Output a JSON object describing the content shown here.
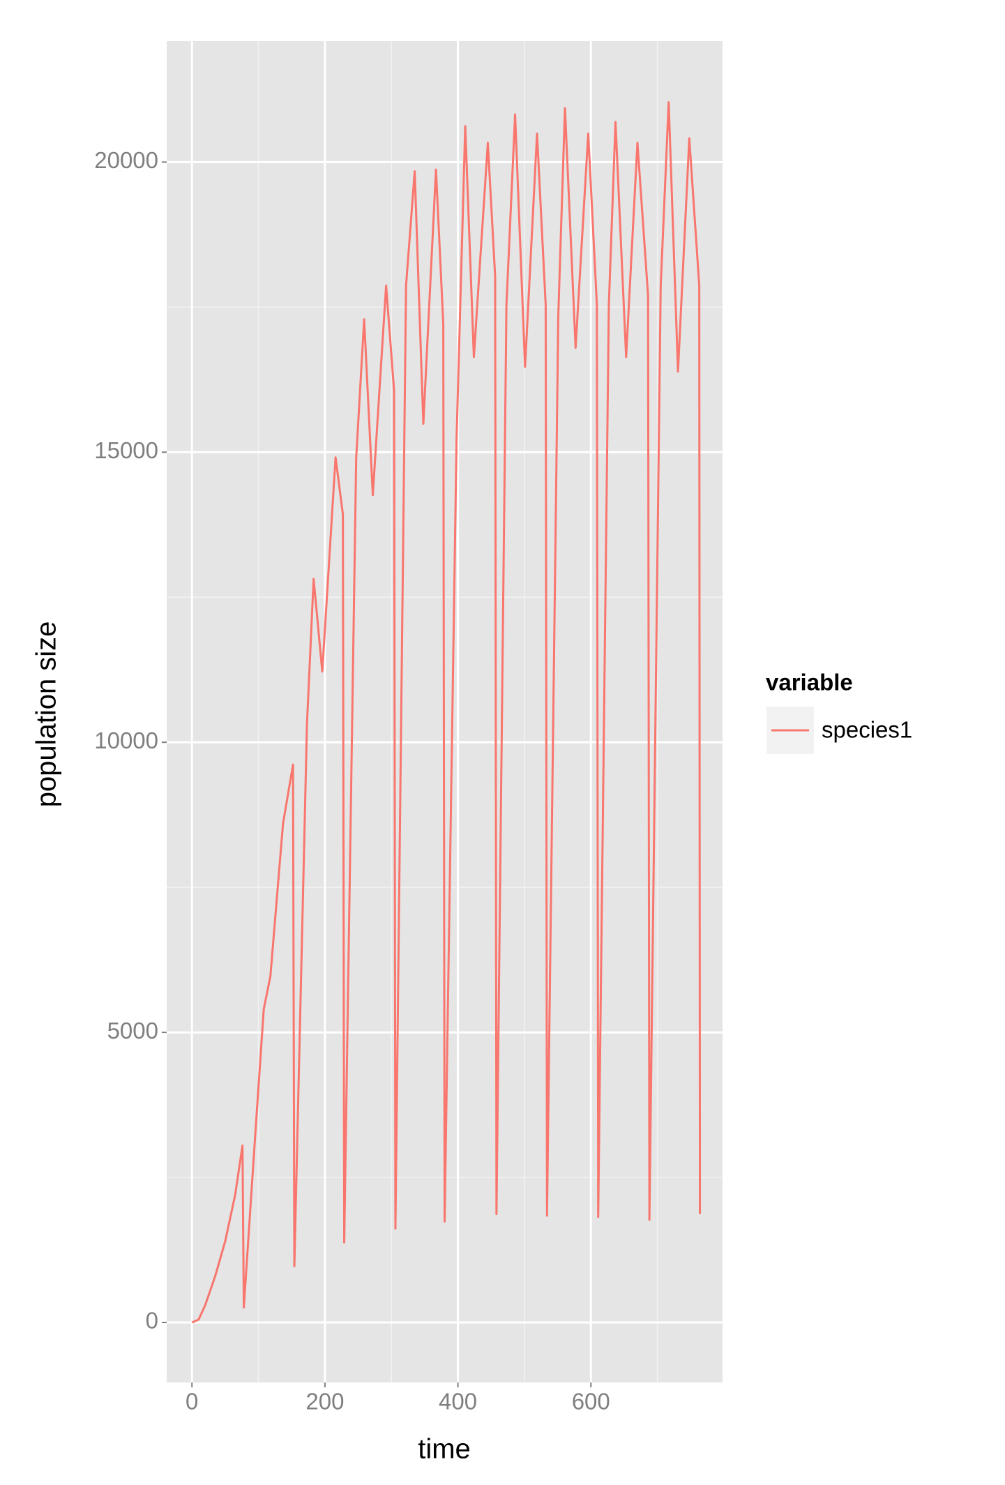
{
  "chart_data": {
    "type": "line",
    "x_label": "time",
    "y_label": "population size",
    "x": [
      0,
      10,
      20,
      35,
      50,
      65,
      76,
      78,
      95,
      108,
      118,
      137,
      152,
      154,
      173,
      183,
      196,
      216,
      227,
      229,
      247,
      259,
      272,
      292,
      304,
      306,
      322,
      335,
      348,
      367,
      378,
      380,
      398,
      411,
      424,
      445,
      456,
      458,
      473,
      486,
      501,
      519,
      532,
      534,
      551,
      561,
      577,
      596,
      609,
      611,
      627,
      637,
      653,
      670,
      686,
      688,
      705,
      717,
      731,
      748,
      763,
      764
    ],
    "series": [
      {
        "name": "species1",
        "color": "#F8766D",
        "values": [
          0,
          50,
          300,
          800,
          1400,
          2200,
          3050,
          260,
          3200,
          5400,
          5970,
          8600,
          9615,
          970,
          10320,
          12815,
          11220,
          14910,
          13930,
          1380,
          14900,
          17290,
          14260,
          17870,
          16060,
          1620,
          17870,
          19840,
          15490,
          19870,
          17210,
          1740,
          15240,
          20620,
          16640,
          20330,
          18030,
          1870,
          17540,
          20820,
          16470,
          20490,
          17540,
          1840,
          17370,
          20930,
          16800,
          20490,
          17540,
          1820,
          17540,
          20690,
          16640,
          20330,
          17700,
          1770,
          17870,
          21030,
          16390,
          20410,
          17870,
          1870
        ]
      }
    ],
    "xlim": [
      -38,
      798
    ],
    "ylim": [
      -1034,
      22084
    ],
    "xticks": [
      0,
      200,
      400,
      600
    ],
    "yticks": [
      0,
      5000,
      10000,
      15000,
      20000
    ],
    "xminor": [
      100,
      300,
      500,
      700
    ],
    "yminor": [
      2500,
      7500,
      12500,
      17500
    ],
    "grid": true,
    "legend_title": "variable",
    "legend_position": "right"
  }
}
